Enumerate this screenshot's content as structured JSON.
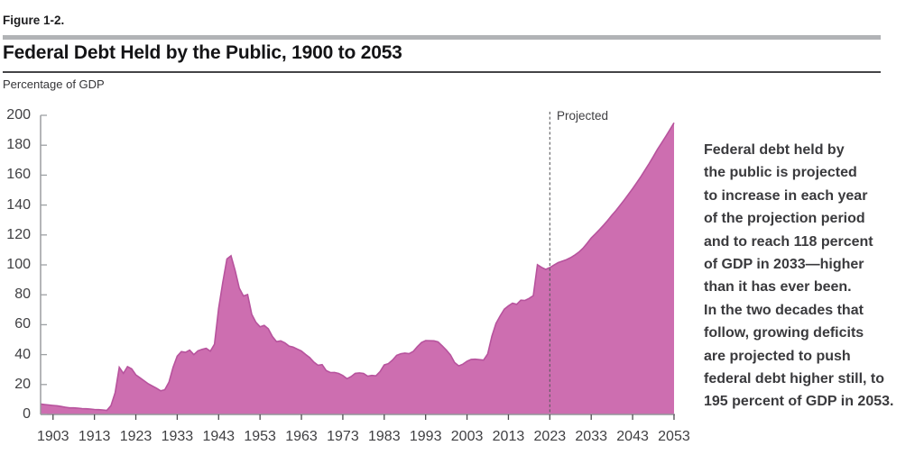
{
  "header": {
    "figure_number": "Figure 1-2.",
    "title": "Federal Debt Held by the Public, 1900 to 2053"
  },
  "chart": {
    "unit_label": "Percentage of GDP",
    "projected_label": "Projected"
  },
  "callout": {
    "lines": [
      "Federal debt held by",
      "the public is projected",
      "to increase in each year",
      "of the projection period",
      "and to reach 118 percent",
      "of GDP in 2033—higher",
      "than it has ever been.",
      "In the two decades that",
      "follow, growing deficits",
      "are projected to push",
      "federal debt higher still, to",
      "195 percent of GDP in 2053."
    ]
  },
  "colors": {
    "area_fill": "#cd6eb0",
    "area_stroke": "#b7539d",
    "axis": "#94969a",
    "y_tick": "#9da0a3",
    "x_tick": "#4b4b4e",
    "dashed_line": "#5a5a5d",
    "gray_bar": "#b1b3b6",
    "header_rule": "#444447",
    "text_dark": "#1d1d1f",
    "text_gray": "#3a3a3d"
  },
  "chart_data": {
    "type": "area",
    "title": "Federal Debt Held by the Public, 1900 to 2053",
    "xlabel": "",
    "ylabel": "Percentage of GDP",
    "ylim": [
      0,
      200
    ],
    "y_ticks": [
      0,
      20,
      40,
      60,
      80,
      100,
      120,
      140,
      160,
      180,
      200
    ],
    "x_ticks": [
      1903,
      1913,
      1923,
      1933,
      1943,
      1953,
      1963,
      1973,
      1983,
      1993,
      2003,
      2013,
      2023,
      2033,
      2043,
      2053
    ],
    "projection_divider_year": 2023,
    "annotations": [
      "Projected"
    ],
    "grid": false,
    "legend": false,
    "series": [
      {
        "name": "Federal debt held by the public (% of GDP)",
        "x_start_year": 1900,
        "x_end_year": 2053,
        "values": [
          7.0,
          6.6,
          6.3,
          6.0,
          5.8,
          5.3,
          4.8,
          4.4,
          4.4,
          4.2,
          3.9,
          3.8,
          3.6,
          3.3,
          3.2,
          3.0,
          2.7,
          5.9,
          14.5,
          31.5,
          27.5,
          32.0,
          30.5,
          26.5,
          24.5,
          22.5,
          20.5,
          19.0,
          17.5,
          15.8,
          16.5,
          21.5,
          31.5,
          39.0,
          42.0,
          41.5,
          43.0,
          40.0,
          42.5,
          43.5,
          44.2,
          42.3,
          47.0,
          70.9,
          88.3,
          104.0,
          106.1,
          96.2,
          84.4,
          79.2,
          80.2,
          66.9,
          61.6,
          58.6,
          59.5,
          57.3,
          52.1,
          48.7,
          49.2,
          47.9,
          45.7,
          45.0,
          43.7,
          42.4,
          40.1,
          38.0,
          35.0,
          32.9,
          33.3,
          29.3,
          28.0,
          28.1,
          27.4,
          26.0,
          23.9,
          25.3,
          27.5,
          27.8,
          27.4,
          25.6,
          26.1,
          25.8,
          28.7,
          33.1,
          34.0,
          36.4,
          39.5,
          40.6,
          41.0,
          40.6,
          42.1,
          45.3,
          48.1,
          49.4,
          49.3,
          49.2,
          48.5,
          45.9,
          43.1,
          39.8,
          34.7,
          32.5,
          33.6,
          35.6,
          36.8,
          36.9,
          36.6,
          36.3,
          40.5,
          52.3,
          60.9,
          65.9,
          70.4,
          72.6,
          74.4,
          73.6,
          76.4,
          76.2,
          77.6,
          79.4,
          100.1,
          98.4,
          97.0,
          98.2,
          99.9,
          101.5,
          102.5,
          103.5,
          104.8,
          106.5,
          108.5,
          111.1,
          114.4,
          118.0,
          120.7,
          123.6,
          126.6,
          129.8,
          133.2,
          136.4,
          139.9,
          143.5,
          147.2,
          151.0,
          155.0,
          159.1,
          163.4,
          167.8,
          172.4,
          177.2,
          181.5,
          185.9,
          190.4,
          195.0
        ]
      }
    ],
    "key_points": {
      "peak_1946": 106.1,
      "value_2033": 118,
      "value_2053": 195
    }
  }
}
